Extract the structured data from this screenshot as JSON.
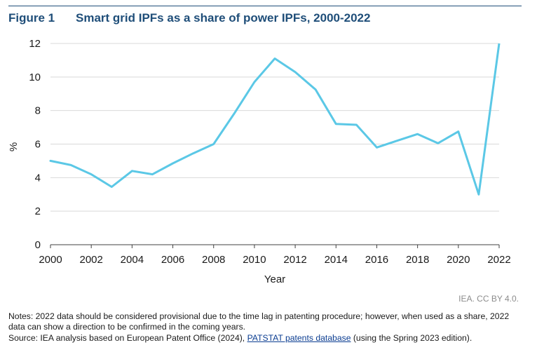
{
  "header": {
    "figure_label": "Figure 1",
    "title": "Smart grid IPFs as a share of power IPFs, 2000-2022"
  },
  "chart_data": {
    "type": "line",
    "title": "Smart grid IPFs as a share of power IPFs, 2000-2022",
    "xlabel": "Year",
    "ylabel": "%",
    "x": [
      2000,
      2001,
      2002,
      2003,
      2004,
      2005,
      2006,
      2007,
      2008,
      2009,
      2010,
      2011,
      2012,
      2013,
      2014,
      2015,
      2016,
      2017,
      2018,
      2019,
      2020,
      2021,
      2022
    ],
    "series": [
      {
        "name": "Smart grid IPFs share",
        "color": "#5bc8e6",
        "values": [
          5.0,
          4.75,
          4.2,
          3.45,
          4.4,
          4.2,
          4.85,
          5.45,
          6.0,
          7.8,
          9.7,
          11.1,
          10.3,
          9.25,
          7.2,
          7.15,
          5.8,
          6.2,
          6.6,
          6.05,
          6.75,
          3.0,
          12.0
        ]
      }
    ],
    "xlim": [
      2000,
      2022
    ],
    "ylim": [
      0,
      12
    ],
    "x_ticks": [
      "2000",
      "2002",
      "2004",
      "2006",
      "2008",
      "2010",
      "2012",
      "2014",
      "2016",
      "2018",
      "2020",
      "2022"
    ],
    "y_ticks": [
      "0",
      "2",
      "4",
      "6",
      "8",
      "10",
      "12"
    ],
    "grid": true
  },
  "credit": "IEA. CC BY 4.0.",
  "notes": {
    "note_text": "Notes: 2022 data should be considered provisional due to the time lag in patenting procedure; however, when used as a share, 2022 data can show a direction to be confirmed in the coming years.",
    "source_prefix": "Source: IEA analysis based on European Patent Office (2024), ",
    "source_link": "PATSTAT patents database",
    "source_suffix": " (using the Spring 2023 edition)."
  }
}
